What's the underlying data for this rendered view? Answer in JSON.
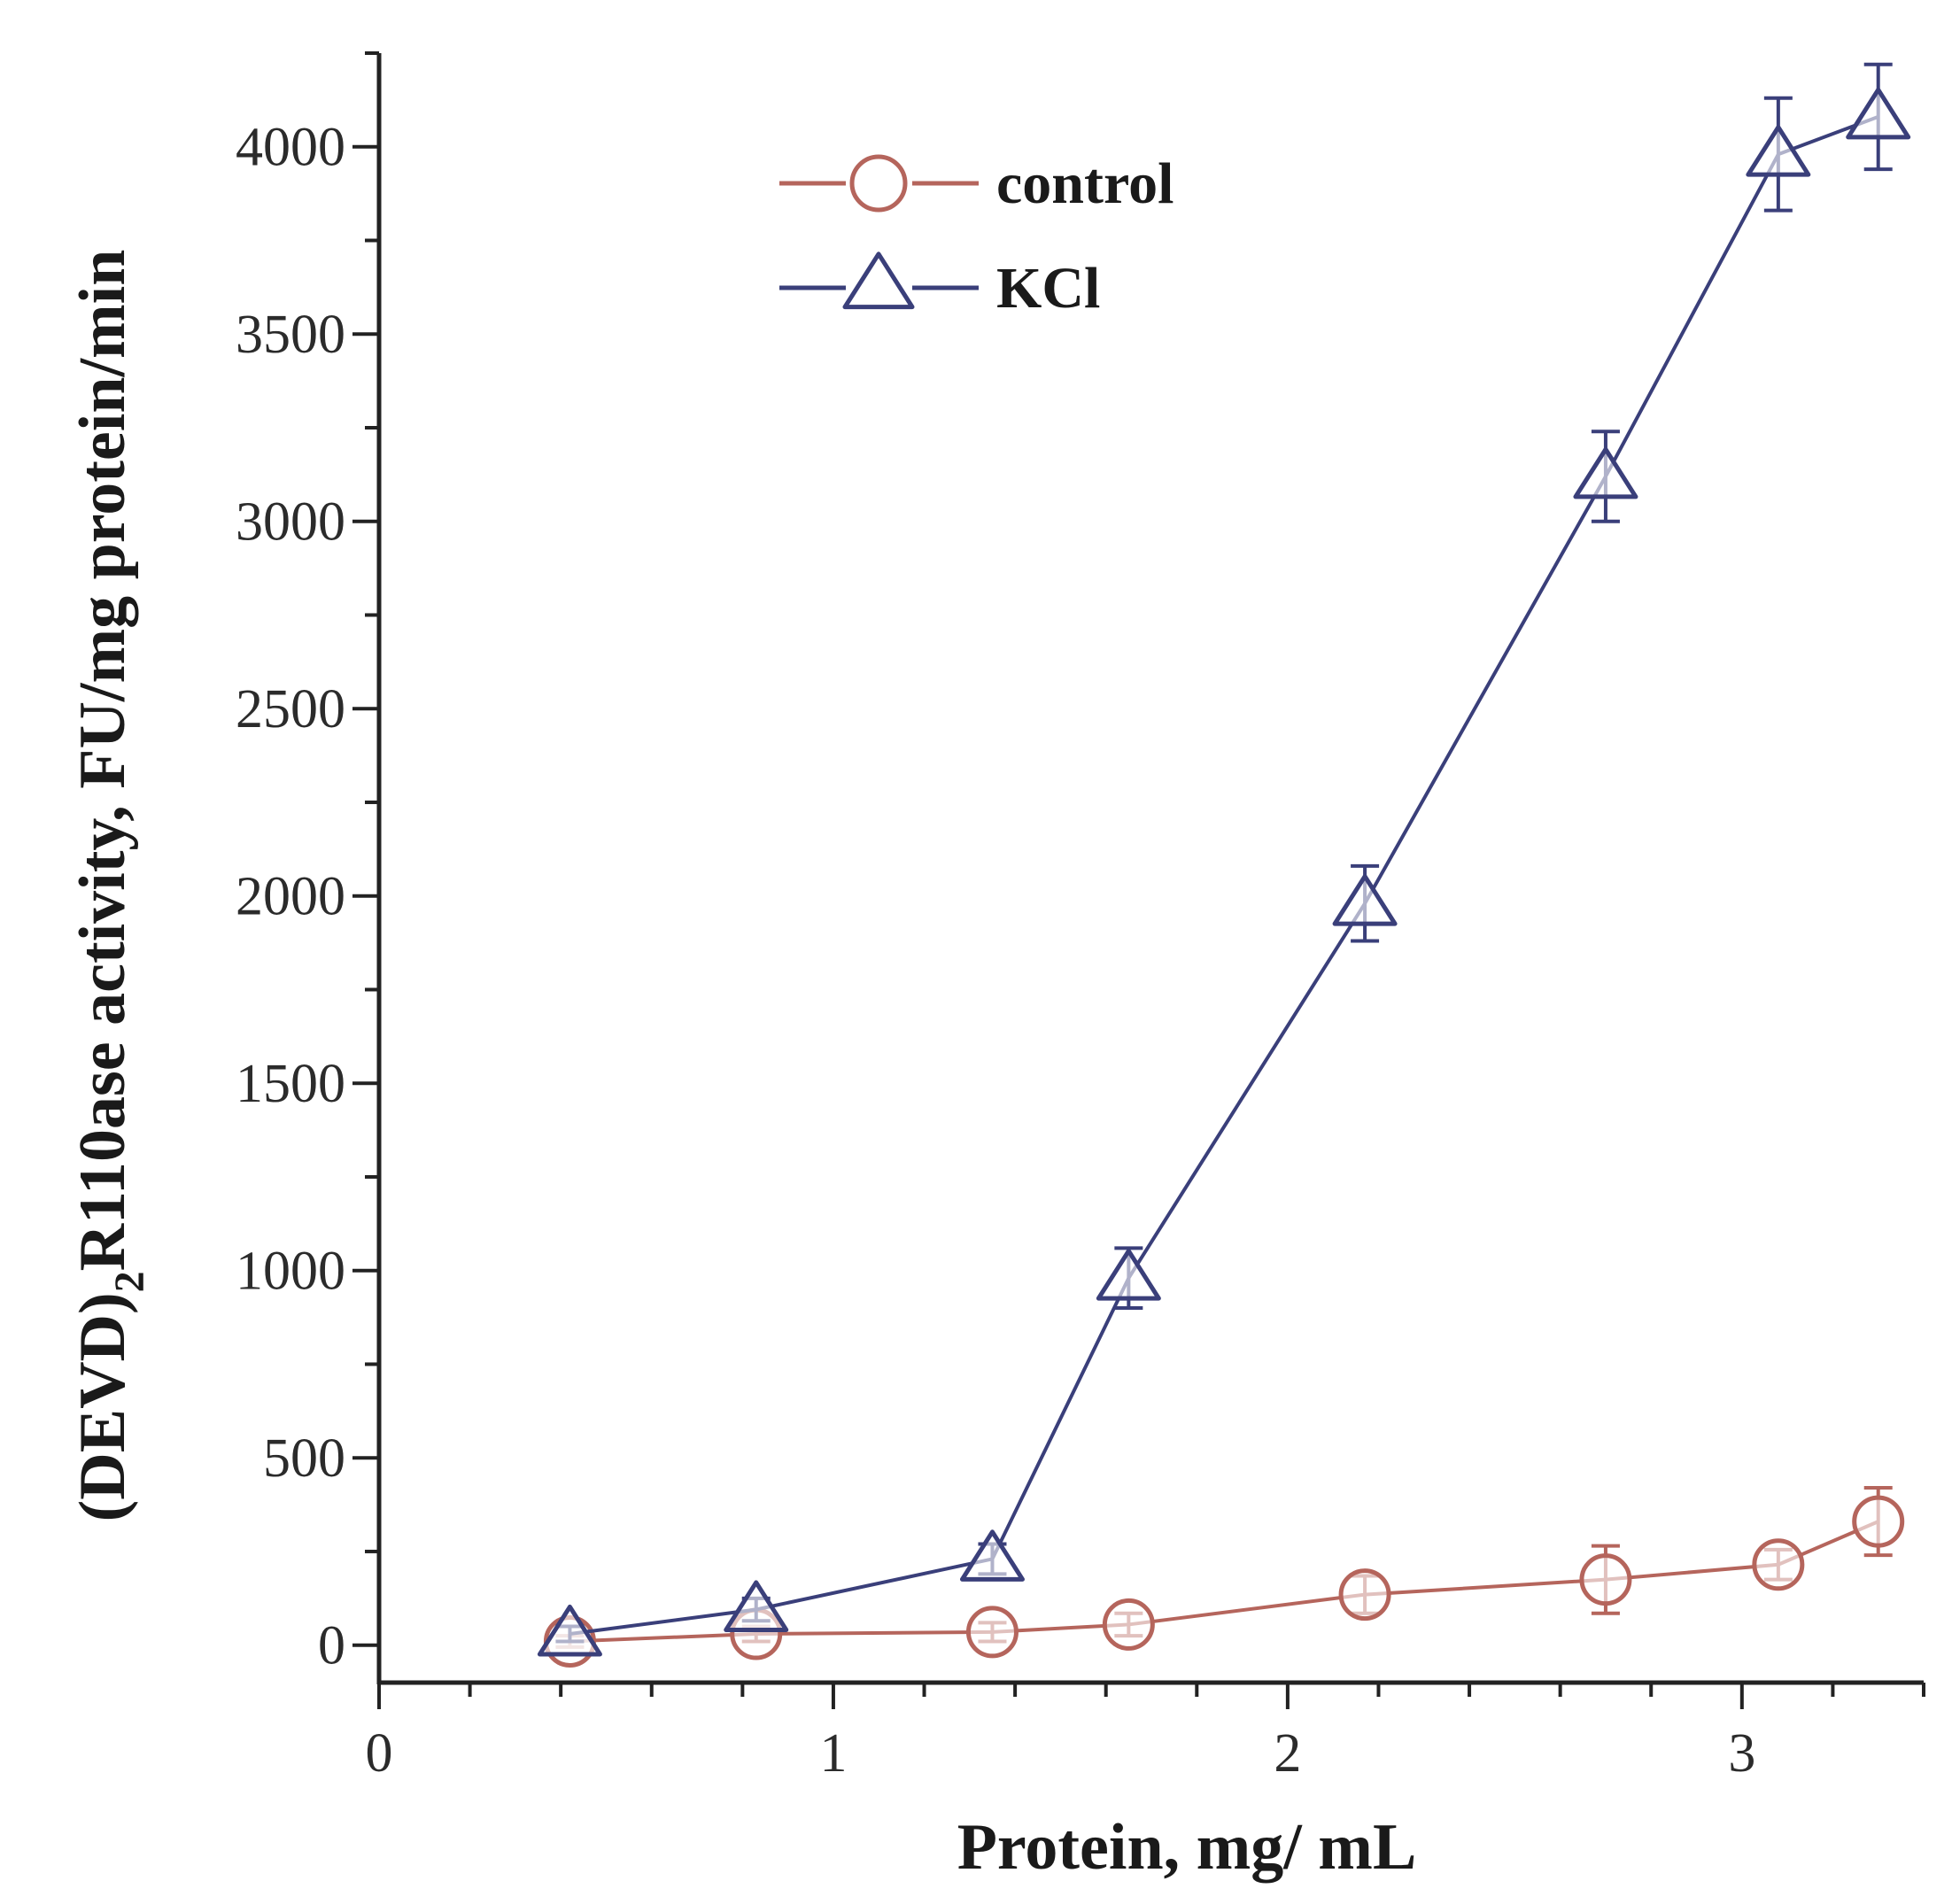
{
  "chart_data": {
    "type": "line",
    "title": "",
    "xlabel": "Protein, mg/ mL",
    "ylabel": "(DEVD)",
    "ylabel_subscript": "2",
    "ylabel_rest": "R110ase activity, FU/mg protein/min",
    "xlim": [
      0,
      3.4
    ],
    "ylim": [
      -100,
      4250
    ],
    "x_ticks": [
      0,
      1,
      2,
      3
    ],
    "x_tick_labels": [
      "0",
      "1",
      "2",
      "3"
    ],
    "x_minor_step": 0.2,
    "y_ticks": [
      0,
      500,
      1000,
      1500,
      2000,
      2500,
      3000,
      3500,
      4000
    ],
    "y_tick_labels": [
      "0",
      "500",
      "1000",
      "1500",
      "2000",
      "2500",
      "3000",
      "3500",
      "4000"
    ],
    "y_minor_step": 250,
    "grid": false,
    "legend_position": "top-left",
    "series": [
      {
        "name": "control",
        "marker": "circle",
        "color": "#b5655c",
        "x": [
          0.42,
          0.83,
          1.35,
          1.65,
          2.17,
          2.7,
          3.08,
          3.3
        ],
        "y": [
          10,
          30,
          35,
          55,
          135,
          175,
          215,
          330
        ],
        "err": [
          15,
          20,
          25,
          30,
          50,
          90,
          40,
          90
        ]
      },
      {
        "name": "KCl",
        "marker": "triangle",
        "color": "#3a3f7a",
        "x": [
          0.42,
          0.83,
          1.35,
          1.65,
          2.17,
          2.7,
          3.08,
          3.3
        ],
        "y": [
          30,
          95,
          230,
          980,
          1980,
          3120,
          3980,
          4080
        ],
        "err": [
          20,
          30,
          40,
          80,
          100,
          120,
          150,
          140
        ]
      }
    ]
  }
}
